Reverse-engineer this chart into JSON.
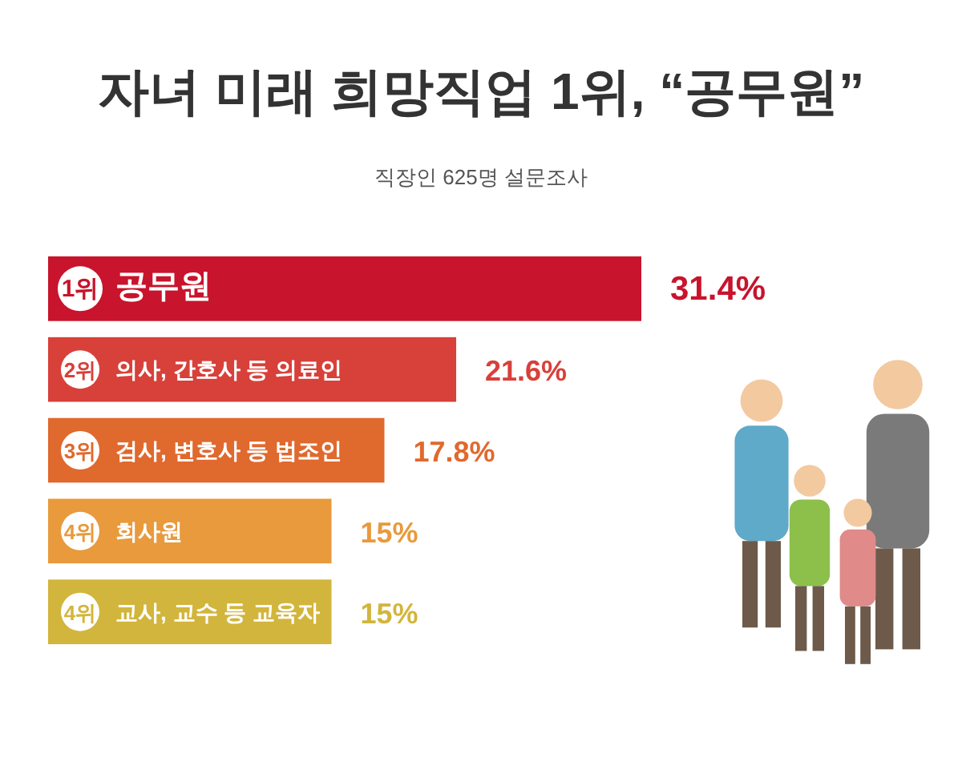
{
  "chart_data": {
    "type": "bar",
    "orientation": "horizontal",
    "title": "자녀 미래 희망직업 1위, “공무원”",
    "subtitle": "직장인 625명 설문조사",
    "categories": [
      "공무원",
      "의사, 간호사 등 의료인",
      "검사, 변호사 등 법조인",
      "회사원",
      "교사, 교수 등 교육자"
    ],
    "values": [
      31.4,
      21.6,
      17.8,
      15,
      15
    ],
    "colors": [
      "#c8142c",
      "#d8403a",
      "#e0692e",
      "#e89a3c",
      "#d2b53c"
    ],
    "value_labels": [
      "31.4%",
      "21.6%",
      "17.8%",
      "15%",
      "15%"
    ],
    "xlim": [
      0,
      31.4
    ],
    "tick_labels": false,
    "annotations": [
      {
        "text": "1위",
        "y": "공무원"
      },
      {
        "text": "2위",
        "y": "의사, 간호사 등 의료인"
      },
      {
        "text": "3위",
        "y": "검사, 변호사 등 법조인"
      },
      {
        "text": "4위",
        "y": "회사원"
      },
      {
        "text": "4위",
        "y": "교사, 교수 등 교육자"
      }
    ]
  }
}
